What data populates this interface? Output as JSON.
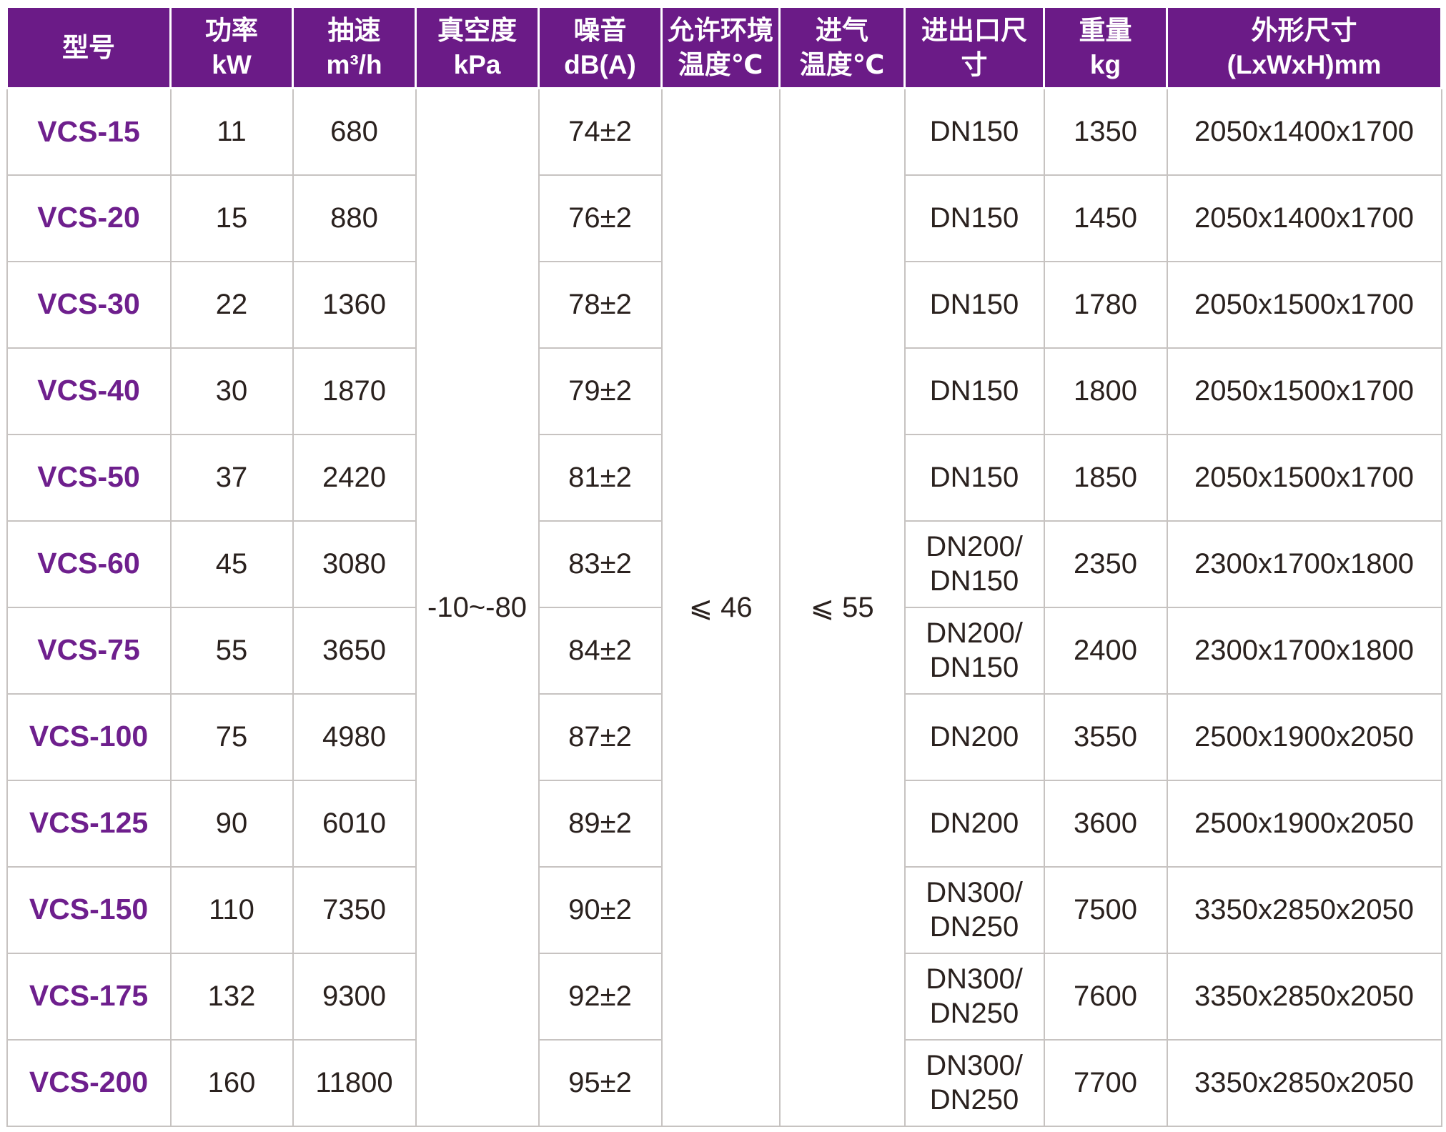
{
  "colors": {
    "header_bg": "#6b1b87",
    "header_text": "#ffffff",
    "model_text": "#6e1f8d",
    "body_text": "#2a211e",
    "grid_line": "#c7c3c1"
  },
  "table": {
    "headers": {
      "model": [
        "型号"
      ],
      "power": [
        "功率",
        "kW"
      ],
      "speed": [
        "抽速",
        "m³/h"
      ],
      "vacuum": [
        "真空度",
        "kPa"
      ],
      "noise": [
        "噪音",
        "dB(A)"
      ],
      "ambient": [
        "允许环境",
        "温度℃"
      ],
      "intake": [
        "进气",
        "温度℃"
      ],
      "ports": [
        "进出口尺",
        "寸"
      ],
      "weight": [
        "重量",
        "kg"
      ],
      "dims": [
        "外形尺寸",
        "(LxWxH)mm"
      ]
    },
    "merged": {
      "vacuum": "-10~-80",
      "ambient": "⩽ 46",
      "intake": "⩽ 55"
    },
    "rows": [
      {
        "model": "VCS-15",
        "power": "11",
        "speed": "680",
        "noise": "74±2",
        "ports": [
          "DN150"
        ],
        "weight": "1350",
        "dims": "2050x1400x1700"
      },
      {
        "model": "VCS-20",
        "power": "15",
        "speed": "880",
        "noise": "76±2",
        "ports": [
          "DN150"
        ],
        "weight": "1450",
        "dims": "2050x1400x1700"
      },
      {
        "model": "VCS-30",
        "power": "22",
        "speed": "1360",
        "noise": "78±2",
        "ports": [
          "DN150"
        ],
        "weight": "1780",
        "dims": "2050x1500x1700"
      },
      {
        "model": "VCS-40",
        "power": "30",
        "speed": "1870",
        "noise": "79±2",
        "ports": [
          "DN150"
        ],
        "weight": "1800",
        "dims": "2050x1500x1700"
      },
      {
        "model": "VCS-50",
        "power": "37",
        "speed": "2420",
        "noise": "81±2",
        "ports": [
          "DN150"
        ],
        "weight": "1850",
        "dims": "2050x1500x1700"
      },
      {
        "model": "VCS-60",
        "power": "45",
        "speed": "3080",
        "noise": "83±2",
        "ports": [
          "DN200/",
          "DN150"
        ],
        "weight": "2350",
        "dims": "2300x1700x1800"
      },
      {
        "model": "VCS-75",
        "power": "55",
        "speed": "3650",
        "noise": "84±2",
        "ports": [
          "DN200/",
          "DN150"
        ],
        "weight": "2400",
        "dims": "2300x1700x1800"
      },
      {
        "model": "VCS-100",
        "power": "75",
        "speed": "4980",
        "noise": "87±2",
        "ports": [
          "DN200"
        ],
        "weight": "3550",
        "dims": "2500x1900x2050"
      },
      {
        "model": "VCS-125",
        "power": "90",
        "speed": "6010",
        "noise": "89±2",
        "ports": [
          "DN200"
        ],
        "weight": "3600",
        "dims": "2500x1900x2050"
      },
      {
        "model": "VCS-150",
        "power": "110",
        "speed": "7350",
        "noise": "90±2",
        "ports": [
          "DN300/",
          "DN250"
        ],
        "weight": "7500",
        "dims": "3350x2850x2050"
      },
      {
        "model": "VCS-175",
        "power": "132",
        "speed": "9300",
        "noise": "92±2",
        "ports": [
          "DN300/",
          "DN250"
        ],
        "weight": "7600",
        "dims": "3350x2850x2050"
      },
      {
        "model": "VCS-200",
        "power": "160",
        "speed": "11800",
        "noise": "95±2",
        "ports": [
          "DN300/",
          "DN250"
        ],
        "weight": "7700",
        "dims": "3350x2850x2050"
      }
    ]
  }
}
